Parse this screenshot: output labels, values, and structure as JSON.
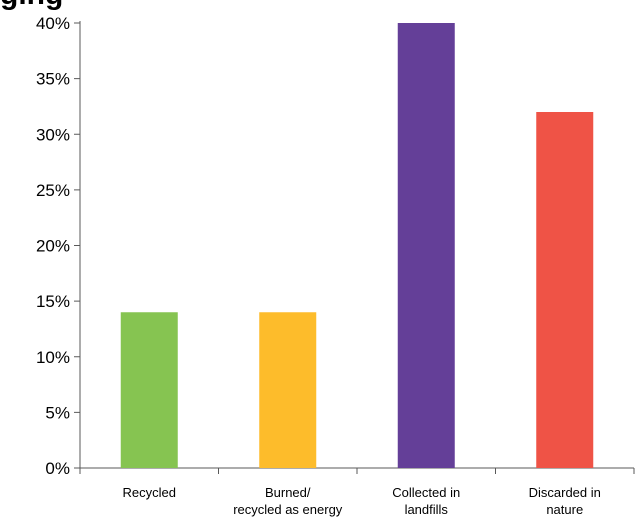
{
  "title_fragment": "ging",
  "colors": {
    "axis": "#595959",
    "text": "#000000",
    "bar_colors": [
      "#86C451",
      "#FDBC2B",
      "#643F98",
      "#EF5346"
    ]
  },
  "chart_data": {
    "type": "bar",
    "title": "",
    "xlabel": "",
    "ylabel": "",
    "categories": [
      "Recycled",
      "Burned/ recycled as energy",
      "Collected in landfills",
      "Discarded in nature"
    ],
    "category_label_lines": [
      [
        "Recycled"
      ],
      [
        "Burned/",
        "recycled as energy"
      ],
      [
        "Collected in",
        "landfills"
      ],
      [
        "Discarded in",
        "nature"
      ]
    ],
    "values": [
      14,
      14,
      40,
      32
    ],
    "unit": "%",
    "ylim": [
      0,
      40
    ],
    "yticks": [
      0,
      5,
      10,
      15,
      20,
      25,
      30,
      35,
      40
    ],
    "ytick_labels": [
      "0%",
      "5%",
      "10%",
      "15%",
      "20%",
      "25%",
      "30%",
      "35%",
      "40%"
    ],
    "grid": false,
    "legend": "none"
  }
}
